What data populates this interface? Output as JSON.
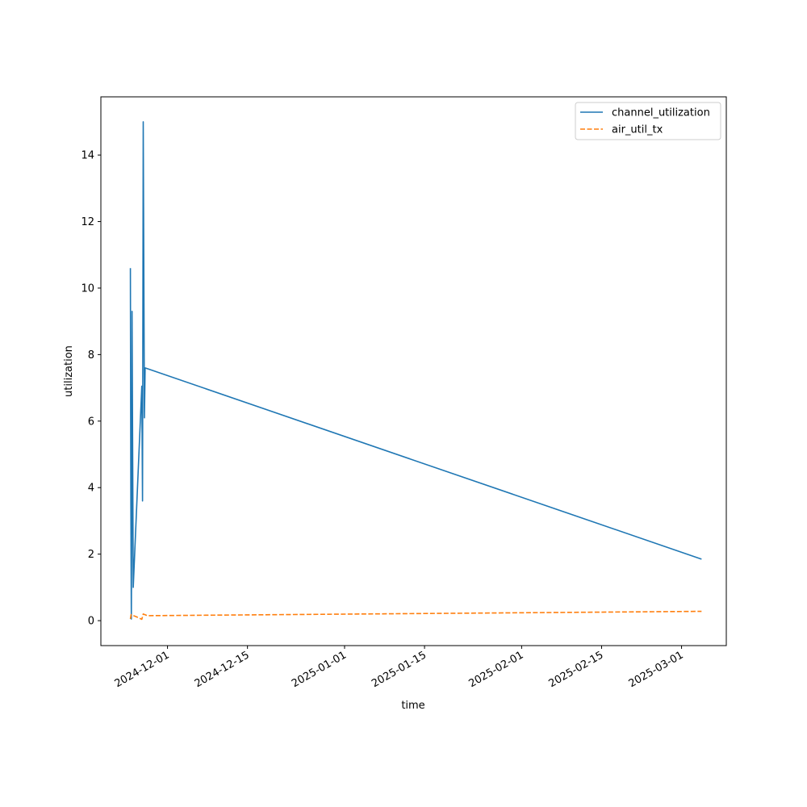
{
  "chart_data": {
    "type": "line",
    "title": "",
    "xlabel": "time",
    "ylabel": "utilization",
    "x_axis_type": "date",
    "xlim": [
      "2024-11-19T08:00",
      "2025-03-08T20:00"
    ],
    "ylim": [
      -0.75,
      15.75
    ],
    "x_ticks": [
      "2024-12-01",
      "2024-12-15",
      "2025-01-01",
      "2025-01-15",
      "2025-02-01",
      "2025-02-15",
      "2025-03-01"
    ],
    "y_ticks": [
      0,
      2,
      4,
      6,
      8,
      10,
      12,
      14
    ],
    "legend_position": "top-right",
    "grid": false,
    "series": [
      {
        "name": "channel_utilization",
        "color": "#1f77b4",
        "style": "solid",
        "points": [
          {
            "x": "2024-11-24T12:00",
            "y": 10.6
          },
          {
            "x": "2024-11-24T14:00",
            "y": 3.5
          },
          {
            "x": "2024-11-24T16:00",
            "y": 0.05
          },
          {
            "x": "2024-11-24T18:00",
            "y": 3.5
          },
          {
            "x": "2024-11-24T19:00",
            "y": 9.3
          },
          {
            "x": "2024-11-25T00:00",
            "y": 1.0
          },
          {
            "x": "2024-11-26T12:00",
            "y": 7.05
          },
          {
            "x": "2024-11-26T15:00",
            "y": 3.6
          },
          {
            "x": "2024-11-26T18:00",
            "y": 15.0
          },
          {
            "x": "2024-11-26T23:00",
            "y": 6.1
          },
          {
            "x": "2024-11-27T02:00",
            "y": 7.6
          },
          {
            "x": "2025-03-04T12:00",
            "y": 1.85
          }
        ]
      },
      {
        "name": "air_util_tx",
        "color": "#ff7f0e",
        "style": "dashed",
        "points": [
          {
            "x": "2024-11-24T12:00",
            "y": 0.05
          },
          {
            "x": "2024-11-24T15:00",
            "y": 0.18
          },
          {
            "x": "2024-11-25T12:00",
            "y": 0.12
          },
          {
            "x": "2024-11-26T12:00",
            "y": 0.04
          },
          {
            "x": "2024-11-26T18:00",
            "y": 0.2
          },
          {
            "x": "2024-11-27T12:00",
            "y": 0.15
          },
          {
            "x": "2025-03-04T12:00",
            "y": 0.28
          }
        ]
      }
    ]
  }
}
